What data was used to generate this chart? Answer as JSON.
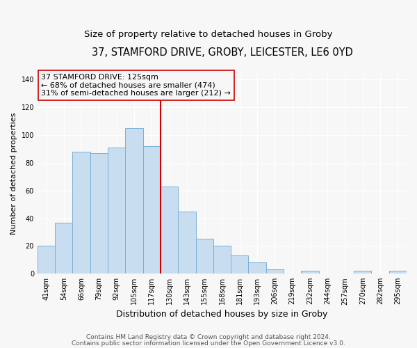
{
  "title": "37, STAMFORD DRIVE, GROBY, LEICESTER, LE6 0YD",
  "subtitle": "Size of property relative to detached houses in Groby",
  "xlabel": "Distribution of detached houses by size in Groby",
  "ylabel": "Number of detached properties",
  "bar_labels": [
    "41sqm",
    "54sqm",
    "66sqm",
    "79sqm",
    "92sqm",
    "105sqm",
    "117sqm",
    "130sqm",
    "143sqm",
    "155sqm",
    "168sqm",
    "181sqm",
    "193sqm",
    "206sqm",
    "219sqm",
    "232sqm",
    "244sqm",
    "257sqm",
    "270sqm",
    "282sqm",
    "295sqm"
  ],
  "bar_values": [
    20,
    37,
    88,
    87,
    91,
    105,
    92,
    63,
    45,
    25,
    20,
    13,
    8,
    3,
    0,
    2,
    0,
    0,
    2,
    0,
    2
  ],
  "bar_color": "#c8ddf0",
  "bar_edge_color": "#7ab0d4",
  "vline_color": "#cc0000",
  "annotation_text_line1": "37 STAMFORD DRIVE: 125sqm",
  "annotation_text_line2": "← 68% of detached houses are smaller (474)",
  "annotation_text_line3": "31% of semi-detached houses are larger (212) →",
  "annotation_box_edge_color": "#cc0000",
  "ylim": [
    0,
    145
  ],
  "yticks": [
    0,
    20,
    40,
    60,
    80,
    100,
    120,
    140
  ],
  "footer1": "Contains HM Land Registry data © Crown copyright and database right 2024.",
  "footer2": "Contains public sector information licensed under the Open Government Licence v3.0.",
  "background_color": "#f7f7f7",
  "grid_color": "#ffffff",
  "title_fontsize": 10.5,
  "subtitle_fontsize": 9.5,
  "xlabel_fontsize": 9,
  "ylabel_fontsize": 8,
  "tick_fontsize": 7,
  "annotation_fontsize": 8,
  "footer_fontsize": 6.5
}
